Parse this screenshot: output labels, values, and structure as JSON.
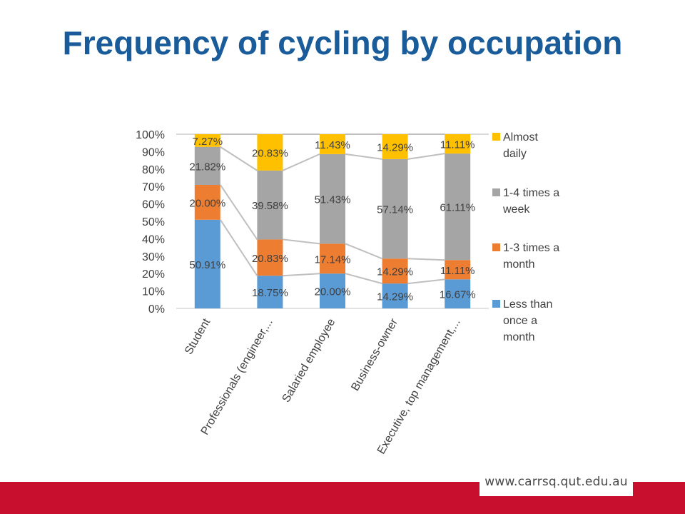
{
  "slide": {
    "title": "Frequency of cycling by occupation",
    "url": "www.carrsq.qut.edu.au"
  },
  "colors": {
    "title": "#1a5c9a",
    "footer": "#c8102e",
    "series": [
      "#5b9bd5",
      "#ed7d31",
      "#a5a5a5",
      "#ffc000"
    ]
  },
  "chart_data": {
    "type": "bar",
    "stacked": true,
    "percent": true,
    "categories": [
      "Student",
      "Professionals  (engineer,...",
      "Salaried employee",
      "Business-owner",
      "Executive, top management,..."
    ],
    "series": [
      {
        "name": "Less than once a month",
        "values": [
          50.91,
          18.75,
          20.0,
          14.29,
          16.67
        ],
        "labels": [
          "50.91%",
          "18.75%",
          "20.00%",
          "14.29%",
          "16.67%"
        ]
      },
      {
        "name": "1-3 times a month",
        "values": [
          20.0,
          20.83,
          17.14,
          14.29,
          11.11
        ],
        "labels": [
          "20.00%",
          "20.83%",
          "17.14%",
          "14.29%",
          "11.11%"
        ]
      },
      {
        "name": "1-4 times a week",
        "values": [
          21.82,
          39.58,
          51.43,
          57.14,
          61.11
        ],
        "labels": [
          "21.82%",
          "39.58%",
          "51.43%",
          "57.14%",
          "61.11%"
        ]
      },
      {
        "name": "Almost daily",
        "values": [
          7.27,
          20.83,
          11.43,
          14.29,
          11.11
        ],
        "labels": [
          "7.27%",
          "20.83%",
          "11.43%",
          "14.29%",
          "11.11%"
        ]
      }
    ],
    "yticks": [
      "0%",
      "10%",
      "20%",
      "30%",
      "40%",
      "50%",
      "60%",
      "70%",
      "80%",
      "90%",
      "100%"
    ],
    "ylim": [
      0,
      100
    ],
    "series_lines": true,
    "legend": "right",
    "legend_lines": [
      [
        "Almost",
        "daily"
      ],
      [
        "1-4 times a",
        "week"
      ],
      [
        "1-3 times a",
        "month"
      ],
      [
        "Less than",
        "once a",
        "month"
      ]
    ],
    "grid": false
  }
}
